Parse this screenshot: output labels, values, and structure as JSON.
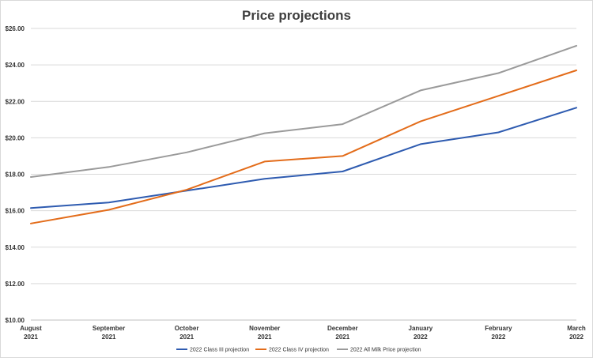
{
  "chart_data": {
    "type": "line",
    "title": "Price projections",
    "xlabel": "",
    "ylabel": "",
    "categories": [
      [
        "August",
        "2021"
      ],
      [
        "September",
        "2021"
      ],
      [
        "October",
        "2021"
      ],
      [
        "November",
        "2021"
      ],
      [
        "December",
        "2021"
      ],
      [
        "January",
        "2022"
      ],
      [
        "February",
        "2022"
      ],
      [
        "March",
        "2022"
      ]
    ],
    "y_ticks": [
      "$10.00",
      "$12.00",
      "$14.00",
      "$16.00",
      "$18.00",
      "$20.00",
      "$22.00",
      "$24.00",
      "$26.00"
    ],
    "ylim": [
      10,
      26
    ],
    "grid": true,
    "legend_position": "bottom",
    "series": [
      {
        "name": "2022 Class III projection",
        "color": "#2e5bb0",
        "values": [
          16.15,
          16.45,
          17.1,
          17.75,
          18.15,
          19.65,
          20.3,
          21.65
        ]
      },
      {
        "name": "2022 Class IV projection",
        "color": "#e36c1a",
        "values": [
          15.3,
          16.05,
          17.15,
          18.7,
          19.0,
          20.9,
          22.3,
          23.7
        ]
      },
      {
        "name": "2022 All Milk Price projection",
        "color": "#9a9a9a",
        "values": [
          17.85,
          18.4,
          19.2,
          20.25,
          20.75,
          22.6,
          23.55,
          25.05
        ]
      }
    ]
  }
}
